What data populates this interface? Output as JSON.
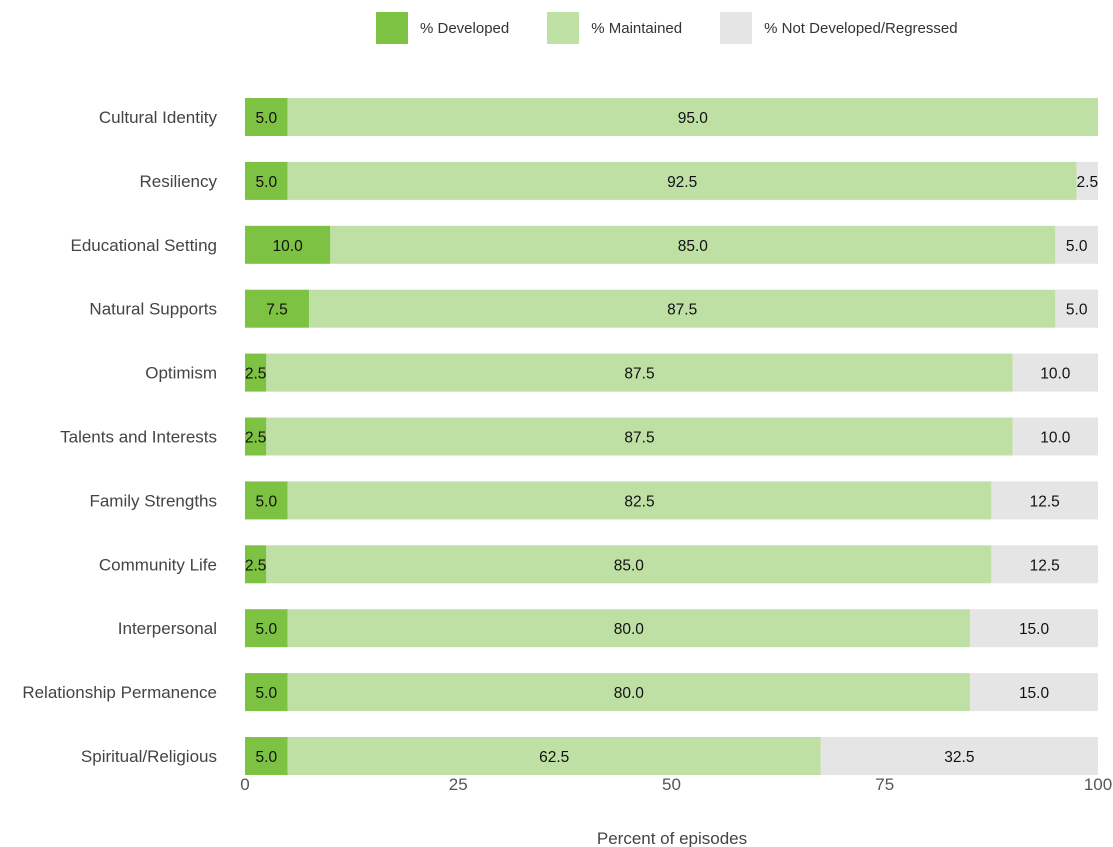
{
  "chart_data": {
    "type": "bar",
    "orientation": "horizontal",
    "stacked": true,
    "xlabel": "Percent of episodes",
    "ylabel": "",
    "xlim": [
      0,
      100
    ],
    "xticks": [
      "0",
      "25",
      "50",
      "75",
      "100"
    ],
    "grid": false,
    "legend_position": "top",
    "categories": [
      "Cultural Identity",
      "Resiliency",
      "Educational Setting",
      "Natural Supports",
      "Optimism",
      "Talents and Interests",
      "Family Strengths",
      "Community Life",
      "Interpersonal",
      "Relationship Permanence",
      "Spiritual/Religious"
    ],
    "series": [
      {
        "name": "% Developed",
        "color": "#7dc242",
        "values": [
          5.0,
          5.0,
          10.0,
          7.5,
          2.5,
          2.5,
          5.0,
          2.5,
          5.0,
          5.0,
          5.0
        ],
        "labels": [
          "5.0",
          "5.0",
          "10.0",
          "7.5",
          "2.5",
          "2.5",
          "5.0",
          "2.5",
          "5.0",
          "5.0",
          "5.0"
        ]
      },
      {
        "name": "% Maintained",
        "color": "#bee0a5",
        "values": [
          95.0,
          92.5,
          85.0,
          87.5,
          87.5,
          87.5,
          82.5,
          85.0,
          80.0,
          80.0,
          62.5
        ],
        "labels": [
          "95.0",
          "92.5",
          "85.0",
          "87.5",
          "87.5",
          "87.5",
          "82.5",
          "85.0",
          "80.0",
          "80.0",
          "62.5"
        ]
      },
      {
        "name": "% Not Developed/Regressed",
        "color": "#e5e5e5",
        "values": [
          0,
          2.5,
          5.0,
          5.0,
          10.0,
          10.0,
          12.5,
          12.5,
          15.0,
          15.0,
          32.5
        ],
        "labels": [
          "",
          "2.5",
          "5.0",
          "5.0",
          "10.0",
          "10.0",
          "12.5",
          "12.5",
          "15.0",
          "15.0",
          "32.5"
        ]
      }
    ]
  }
}
